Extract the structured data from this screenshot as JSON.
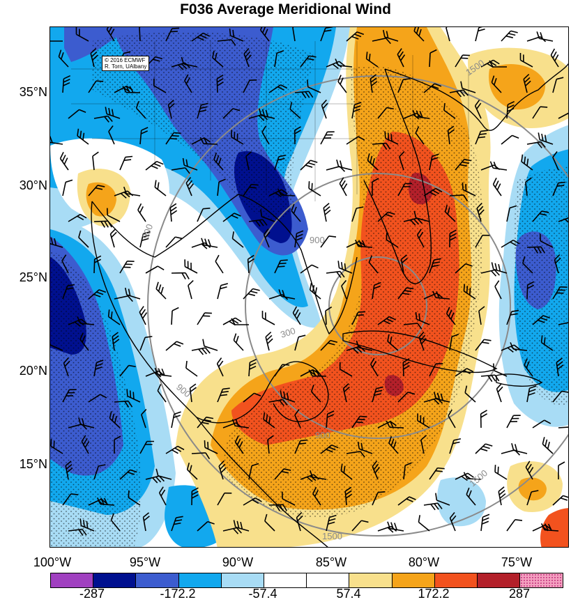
{
  "title": "F036 Average Meridional Wind",
  "credit": {
    "line1": "© 2016 ECMWF",
    "line2": "R. Torn, UAlbany"
  },
  "lat_labels": [
    "35°N",
    "30°N",
    "25°N",
    "20°N",
    "15°N"
  ],
  "lon_labels": [
    "100°W",
    "95°W",
    "90°W",
    "85°W",
    "80°W",
    "75°W"
  ],
  "colorbar": {
    "colors": [
      "#a040c0",
      "#00108f",
      "#3c5ccf",
      "#12a8ee",
      "#a8dcf5",
      "#ffffff",
      "#ffffff",
      "#f8e08c",
      "#f5a41a",
      "#f2521e",
      "#b3202a",
      "#f4a0c0"
    ],
    "labels": [
      "-287",
      "-172.2",
      "-57.4",
      "57.4",
      "172.2",
      "287"
    ]
  },
  "contour_labels": [
    "900",
    "900",
    "300",
    "900",
    "900",
    "1500",
    "1500",
    "1500"
  ],
  "palette": {
    "deep_blue": "#00108f",
    "blue": "#3c5ccf",
    "sky": "#12a8ee",
    "light_sky": "#a8dcf5",
    "yellow": "#f8e08c",
    "orange": "#f5a41a",
    "red_orange": "#f2521e",
    "dark_red": "#b3202a"
  }
}
